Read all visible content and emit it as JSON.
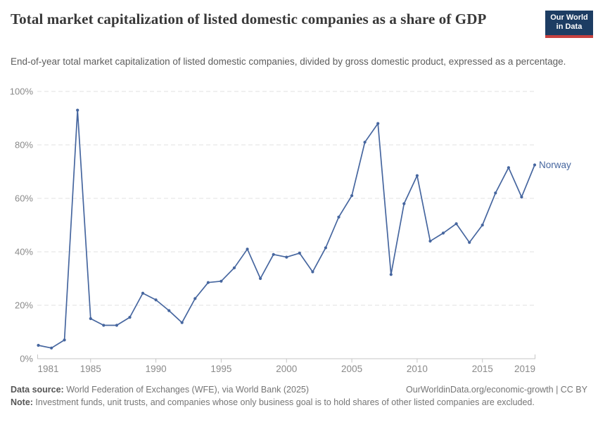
{
  "header": {
    "title": "Total market capitalization of listed domestic companies as a share of GDP",
    "subtitle": "End-of-year total market capitalization of listed domestic companies, divided by gross domestic product, expressed as a percentage.",
    "logo": {
      "line1": "Our World",
      "line2": "in Data",
      "bg_color": "#1d3d63",
      "accent_color": "#c7413f"
    }
  },
  "chart_data": {
    "type": "line",
    "title": "Total market capitalization of listed domestic companies as a share of GDP",
    "xlabel": "",
    "ylabel": "",
    "xlim": [
      1981,
      2019
    ],
    "ylim": [
      0,
      100
    ],
    "x_ticks": [
      1981,
      1985,
      1990,
      1995,
      2000,
      2005,
      2010,
      2015,
      2019
    ],
    "y_ticks": [
      0,
      20,
      40,
      60,
      80,
      100
    ],
    "y_tick_suffix": "%",
    "grid": "horizontal-dashed",
    "legend_position": "end-of-line-label",
    "series": [
      {
        "name": "Norway",
        "color": "#46669f",
        "x": [
          1981,
          1982,
          1983,
          1984,
          1985,
          1986,
          1987,
          1988,
          1989,
          1990,
          1991,
          1992,
          1993,
          1994,
          1995,
          1996,
          1997,
          1998,
          1999,
          2000,
          2001,
          2002,
          2003,
          2004,
          2005,
          2006,
          2007,
          2008,
          2009,
          2010,
          2011,
          2012,
          2013,
          2014,
          2015,
          2016,
          2017,
          2018,
          2019
        ],
        "values": [
          5,
          4,
          7,
          93,
          15,
          12.5,
          12.5,
          15.5,
          24.5,
          22,
          18,
          13.5,
          22.5,
          28.5,
          29,
          34,
          41,
          30,
          39,
          38,
          39.5,
          32.5,
          41.5,
          53,
          61,
          81,
          88,
          31.5,
          58,
          68.5,
          44,
          47,
          50.5,
          43.5,
          50,
          62,
          71.5,
          60.5,
          72.5
        ]
      }
    ],
    "colors": {
      "gridline": "#e0e0e0",
      "axis": "#c6c6c6",
      "tick_label": "#8a8a8a"
    }
  },
  "footer": {
    "datasource_label": "Data source:",
    "datasource_value": " World Federation of Exchanges (WFE), via World Bank (2025)",
    "link": "OurWorldinData.org/economic-growth | CC BY",
    "note_label": "Note:",
    "note_value": " Investment funds, unit trusts, and companies whose only business goal is to hold shares of other listed companies are excluded."
  }
}
